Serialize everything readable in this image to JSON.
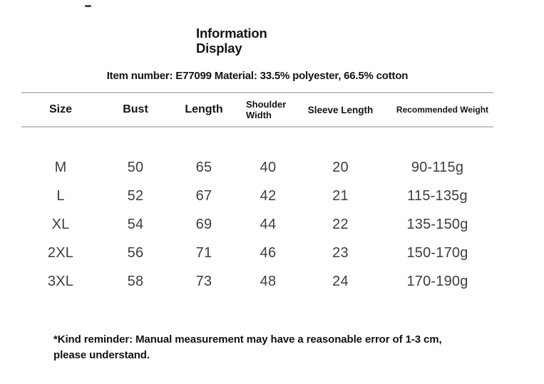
{
  "header": {
    "title_line1": "Information",
    "title_line2": "Display",
    "item_info": "Item number: E77099 Material: 33.5% polyester, 66.5% cotton"
  },
  "size_chart": {
    "columns": [
      "Size",
      "Bust",
      "Length",
      "Shoulder Width",
      "Sleeve Length",
      "Recommended Weight"
    ],
    "rows": [
      [
        "M",
        "50",
        "65",
        "40",
        "20",
        "90-115g"
      ],
      [
        "L",
        "52",
        "67",
        "42",
        "21",
        "115-135g"
      ],
      [
        "XL",
        "54",
        "69",
        "44",
        "22",
        "135-150g"
      ],
      [
        "2XL",
        "56",
        "71",
        "46",
        "23",
        "150-170g"
      ],
      [
        "3XL",
        "58",
        "73",
        "48",
        "24",
        "170-190g"
      ]
    ]
  },
  "footer": {
    "note_line1": "*Kind reminder: Manual measurement may have a reasonable error of 1-3 cm,",
    "note_line2": "please understand."
  },
  "colors": {
    "background": "#ffffff",
    "text_primary": "#141414",
    "text_body": "#3e3e3e",
    "divider": "#c3c3c3"
  }
}
